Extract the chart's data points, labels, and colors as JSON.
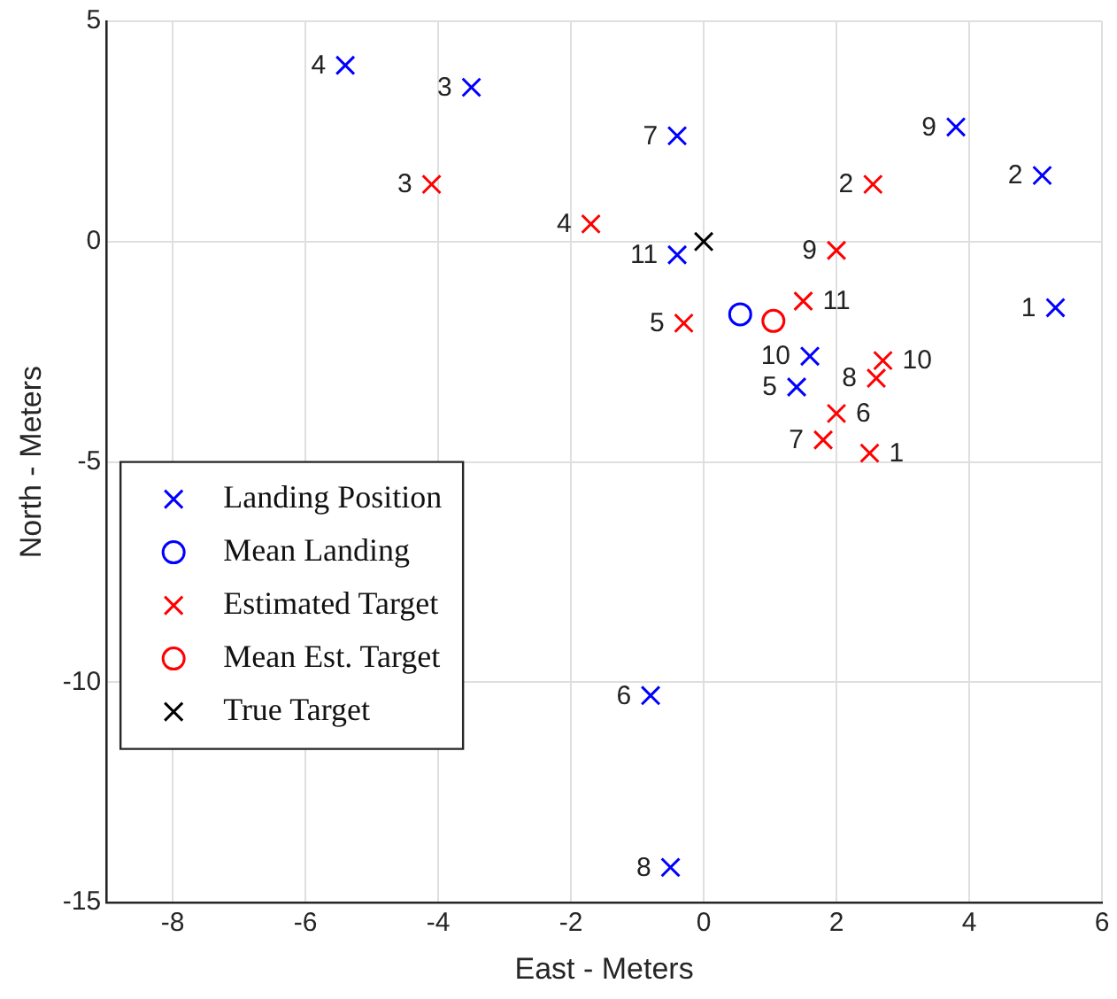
{
  "chart_data": {
    "type": "scatter",
    "xlabel": "East - Meters",
    "ylabel": "North - Meters",
    "xlim": [
      -9,
      6
    ],
    "xticks": [
      -8,
      -6,
      -4,
      -2,
      0,
      2,
      4,
      6
    ],
    "ylim": [
      -15,
      5
    ],
    "yticks": [
      -15,
      -10,
      -5,
      0,
      5
    ],
    "grid": true,
    "legend": "bottom left",
    "series": [
      {
        "name": "Landing Position",
        "color": "#0000ff",
        "marker": "cross",
        "x": [
          5.3,
          5.1,
          -3.5,
          -5.4,
          1.4,
          -0.8,
          -0.4,
          -0.5,
          3.8,
          1.6,
          -0.4
        ],
        "values": [
          -1.5,
          1.5,
          3.5,
          4.0,
          -3.3,
          -10.3,
          2.4,
          -14.2,
          2.6,
          -2.6,
          -0.3
        ]
      },
      {
        "name": "Mean Landing",
        "color": "#0000ff",
        "marker": "circle",
        "x": [
          0.55
        ],
        "values": [
          -1.65
        ]
      },
      {
        "name": "Estimated Target",
        "color": "#ff0000",
        "marker": "cross",
        "x": [
          2.5,
          2.55,
          -4.1,
          -1.7,
          -0.3,
          2.0,
          1.8,
          2.6,
          2.0,
          2.7,
          1.5
        ],
        "values": [
          -4.8,
          1.3,
          1.3,
          0.4,
          -1.85,
          -3.9,
          -4.5,
          -3.1,
          -0.2,
          -2.7,
          -1.35
        ]
      },
      {
        "name": "Mean Est. Target",
        "color": "#ff0000",
        "marker": "circle",
        "x": [
          1.05
        ],
        "values": [
          -1.8
        ]
      },
      {
        "name": "True Target",
        "color": "#000000",
        "marker": "cross",
        "x": [
          0
        ],
        "values": [
          0
        ]
      }
    ],
    "annotations": [
      {
        "text": "1",
        "x": 5.3,
        "y": -1.5
      },
      {
        "text": "2",
        "x": 5.1,
        "y": 1.5
      },
      {
        "text": "3",
        "x": -3.5,
        "y": 3.5
      },
      {
        "text": "4",
        "x": -5.4,
        "y": 4.0
      },
      {
        "text": "5",
        "x": 1.4,
        "y": -3.3
      },
      {
        "text": "6",
        "x": -0.8,
        "y": -10.3
      },
      {
        "text": "7",
        "x": -0.4,
        "y": 2.4
      },
      {
        "text": "8",
        "x": -0.5,
        "y": -14.2
      },
      {
        "text": "9",
        "x": 3.8,
        "y": 2.6
      },
      {
        "text": "10",
        "x": 1.6,
        "y": -2.6
      },
      {
        "text": "11",
        "x": -0.4,
        "y": -0.3
      },
      {
        "text": "1",
        "x": 2.5,
        "y": -4.8
      },
      {
        "text": "2",
        "x": 2.55,
        "y": 1.3
      },
      {
        "text": "3",
        "x": -4.1,
        "y": 1.3
      },
      {
        "text": "4",
        "x": -1.7,
        "y": 0.4
      },
      {
        "text": "5",
        "x": -0.3,
        "y": -1.85
      },
      {
        "text": "6",
        "x": 2.0,
        "y": -3.9
      },
      {
        "text": "7",
        "x": 1.8,
        "y": -4.5
      },
      {
        "text": "8",
        "x": 2.6,
        "y": -3.1
      },
      {
        "text": "9",
        "x": 2.0,
        "y": -0.2
      },
      {
        "text": "10",
        "x": 2.7,
        "y": -2.7
      },
      {
        "text": "11",
        "x": 1.5,
        "y": -1.35
      }
    ]
  }
}
